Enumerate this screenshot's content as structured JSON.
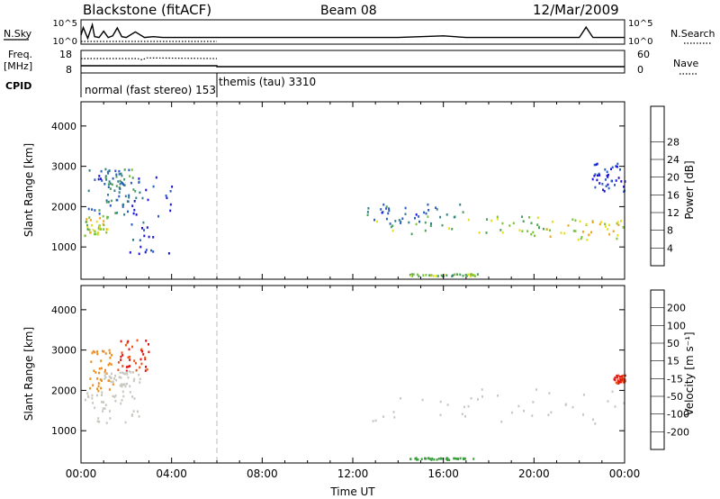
{
  "header": {
    "title": "Blackstone (fitACF)",
    "beam": "Beam 08",
    "date": "12/Mar/2009"
  },
  "chart_data": [
    {
      "type": "line",
      "panel": "noise",
      "left_label": "N.Sky",
      "right_label": "N.Search",
      "yticks_left": [
        "10^5",
        "10^0"
      ],
      "yticks_right": [
        "10^5",
        "10^0"
      ],
      "x": [
        0,
        0.1,
        0.3,
        0.5,
        0.6,
        0.8,
        1.0,
        1.2,
        1.4,
        1.6,
        1.8,
        2.0,
        2.4,
        2.8,
        3.2,
        3.6,
        4.0,
        6.0,
        8.0,
        10.0,
        12.0,
        14.0,
        16.0,
        17.0,
        18.0,
        20.0,
        21.0,
        22.0,
        22.3,
        22.6,
        23.0,
        24.0
      ],
      "y": [
        1.6,
        3.5,
        0.8,
        4.2,
        1.2,
        1.0,
        2.6,
        1.0,
        1.4,
        3.4,
        1.2,
        1.0,
        2.4,
        1.0,
        1.2,
        1.0,
        1.0,
        1.0,
        1.0,
        1.0,
        1.0,
        1.0,
        1.4,
        1.0,
        1.0,
        1.0,
        1.0,
        1.0,
        3.6,
        1.0,
        1.0,
        1.0
      ],
      "search_until": 6.0
    },
    {
      "type": "line",
      "panel": "frequency",
      "left_label": "Freq.",
      "left_unit": "[MHz]",
      "right_label": "Nave",
      "yticks_left": [
        "18",
        "8"
      ],
      "yticks_right": [
        "60",
        "0"
      ],
      "freq_x": [
        0,
        6.0,
        6.0,
        24.0
      ],
      "freq_y": [
        10.5,
        10.5,
        10.0,
        10.0
      ],
      "nave_x": [
        0,
        2.5,
        2.7,
        2.9,
        6.0
      ],
      "nave_y": [
        40,
        40,
        36,
        42,
        40
      ]
    },
    {
      "type": "table",
      "panel": "cpid",
      "label": "CPID",
      "segments": [
        {
          "start": 0,
          "end": 6.0,
          "text": "normal (fast stereo) 153"
        },
        {
          "start": 6.0,
          "end": 24.0,
          "text": "themis (tau) 3310"
        }
      ]
    },
    {
      "type": "heatmap",
      "panel": "power",
      "ylabel": "Slant Range [km]",
      "yticks": [
        1000,
        2000,
        3000,
        4000
      ],
      "ylim": [
        200,
        4600
      ],
      "colorbar_label": "Power [dB]",
      "colorbar_ticks": [
        4,
        8,
        12,
        16,
        20,
        24,
        28
      ],
      "colorbar_colors": [
        "#1c14d8",
        "#2a5cc2",
        "#36808a",
        "#4aa05a",
        "#7cc33c",
        "#e6df1e",
        "#f4a51c",
        "#f0641c",
        "#e01c1c"
      ],
      "regions": [
        {
          "t0": 0.1,
          "t1": 1.2,
          "r0": 1300,
          "r1": 1800,
          "v": 20
        },
        {
          "t0": 0.3,
          "t1": 2.0,
          "r0": 1800,
          "r1": 3050,
          "v": 8
        },
        {
          "t0": 1.0,
          "t1": 2.6,
          "r0": 2100,
          "r1": 3000,
          "v": 12
        },
        {
          "t0": 2.0,
          "t1": 4.0,
          "r0": 800,
          "r1": 2800,
          "v": 4
        },
        {
          "t0": 13.0,
          "t1": 20.5,
          "r0": 1300,
          "r1": 1800,
          "v": 16
        },
        {
          "t0": 12.6,
          "t1": 17.0,
          "r0": 1600,
          "r1": 2100,
          "v": 8
        },
        {
          "t0": 20.5,
          "t1": 24.0,
          "r0": 1200,
          "r1": 1750,
          "v": 22
        },
        {
          "t0": 22.5,
          "t1": 24.0,
          "r0": 2400,
          "r1": 3100,
          "v": 4
        },
        {
          "t0": 14.5,
          "t1": 17.5,
          "r0": 300,
          "r1": 350,
          "v": 16
        }
      ]
    },
    {
      "type": "heatmap",
      "panel": "velocity",
      "ylabel": "Slant Range [km]",
      "yticks": [
        1000,
        2000,
        3000,
        4000
      ],
      "ylim": [
        200,
        4600
      ],
      "xlabel": "Time UT",
      "xticks": [
        "00:00",
        "04:00",
        "08:00",
        "12:00",
        "16:00",
        "20:00",
        "00:00"
      ],
      "xtick_values": [
        0,
        4,
        8,
        12,
        16,
        20,
        24
      ],
      "colorbar_label": "Velocity [m s⁻¹]",
      "colorbar_ticks": [
        "200",
        "100",
        "50",
        "15",
        "-15",
        "-50",
        "-100",
        "-200"
      ],
      "colorbar_colors": [
        "#1c3cd0",
        "#2a7a50",
        "#3ca040",
        "#78c83c",
        "#c8c8c0",
        "#f4b428",
        "#f08c1c",
        "#f05014",
        "#e01414"
      ],
      "regions": [
        {
          "t0": 0.1,
          "t1": 2.6,
          "r0": 1200,
          "r1": 2000,
          "v": 0
        },
        {
          "t0": 0.3,
          "t1": 1.4,
          "r0": 2000,
          "r1": 3050,
          "v": -75
        },
        {
          "t0": 1.6,
          "t1": 3.0,
          "r0": 2500,
          "r1": 3300,
          "v": -200
        },
        {
          "t0": 1.0,
          "t1": 2.6,
          "r0": 2100,
          "r1": 2500,
          "v": 10
        },
        {
          "t0": 12.6,
          "t1": 24.0,
          "r0": 1200,
          "r1": 2100,
          "v": 0
        },
        {
          "t0": 14.5,
          "t1": 17.5,
          "r0": 300,
          "r1": 350,
          "v": 60
        },
        {
          "t0": 23.5,
          "t1": 24.0,
          "r0": 2200,
          "r1": 2400,
          "v": -200
        }
      ]
    }
  ]
}
